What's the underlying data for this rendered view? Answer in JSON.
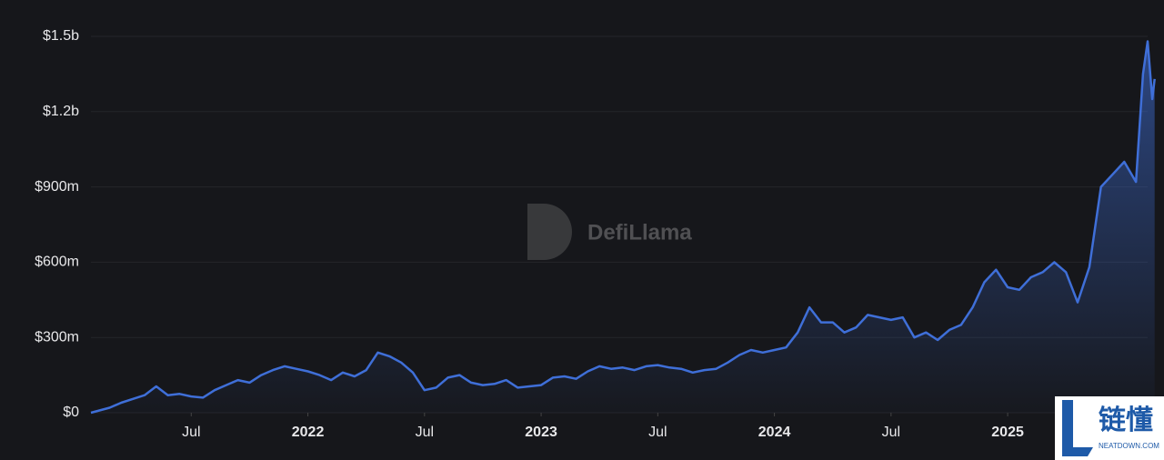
{
  "chart_data": {
    "type": "area",
    "watermark": "DefiLlama",
    "badge": {
      "title": "链懂",
      "subtitle": "NEATDOWN.COM"
    },
    "color": "#3f6fd8",
    "grid": true,
    "x": [
      2021.07,
      2021.15,
      2021.2,
      2021.25,
      2021.3,
      2021.35,
      2021.4,
      2021.45,
      2021.5,
      2021.55,
      2021.6,
      2021.65,
      2021.7,
      2021.75,
      2021.8,
      2021.85,
      2021.9,
      2021.95,
      2022.0,
      2022.05,
      2022.1,
      2022.15,
      2022.2,
      2022.25,
      2022.3,
      2022.35,
      2022.4,
      2022.45,
      2022.5,
      2022.55,
      2022.6,
      2022.65,
      2022.7,
      2022.75,
      2022.8,
      2022.85,
      2022.9,
      2022.95,
      2023.0,
      2023.05,
      2023.1,
      2023.15,
      2023.2,
      2023.25,
      2023.3,
      2023.35,
      2023.4,
      2023.45,
      2023.5,
      2023.55,
      2023.6,
      2023.65,
      2023.7,
      2023.75,
      2023.8,
      2023.85,
      2023.9,
      2023.95,
      2024.0,
      2024.05,
      2024.1,
      2024.15,
      2024.2,
      2024.25,
      2024.3,
      2024.35,
      2024.4,
      2024.45,
      2024.5,
      2024.55,
      2024.6,
      2024.65,
      2024.7,
      2024.75,
      2024.8,
      2024.85,
      2024.9,
      2024.95,
      2025.0,
      2025.05,
      2025.1,
      2025.15,
      2025.2,
      2025.25,
      2025.3,
      2025.35,
      2025.4,
      2025.45,
      2025.5,
      2025.55,
      2025.58,
      2025.6,
      2025.62,
      2025.63
    ],
    "values": [
      0,
      20000000,
      40000000,
      55000000,
      70000000,
      105000000,
      70000000,
      75000000,
      65000000,
      60000000,
      90000000,
      110000000,
      130000000,
      120000000,
      150000000,
      170000000,
      185000000,
      175000000,
      165000000,
      150000000,
      130000000,
      160000000,
      145000000,
      170000000,
      240000000,
      225000000,
      200000000,
      160000000,
      90000000,
      100000000,
      140000000,
      150000000,
      120000000,
      110000000,
      115000000,
      130000000,
      100000000,
      105000000,
      110000000,
      140000000,
      145000000,
      135000000,
      165000000,
      185000000,
      175000000,
      180000000,
      170000000,
      185000000,
      190000000,
      180000000,
      175000000,
      160000000,
      170000000,
      175000000,
      200000000,
      230000000,
      250000000,
      240000000,
      250000000,
      260000000,
      320000000,
      420000000,
      360000000,
      360000000,
      320000000,
      340000000,
      390000000,
      380000000,
      370000000,
      380000000,
      300000000,
      320000000,
      290000000,
      330000000,
      350000000,
      420000000,
      520000000,
      570000000,
      500000000,
      490000000,
      540000000,
      560000000,
      600000000,
      560000000,
      440000000,
      580000000,
      900000000,
      950000000,
      1000000000,
      920000000,
      1350000000,
      1480000000,
      1250000000,
      1330000000
    ],
    "xlim": [
      2021.07,
      2025.6
    ],
    "xticks": [
      {
        "value": 2021.5,
        "label": "Jul"
      },
      2022,
      {
        "value": 2022.5,
        "label": "Jul"
      },
      2023,
      {
        "value": 2023.5,
        "label": "Jul"
      },
      2024,
      {
        "value": 2024.5,
        "label": "Jul"
      },
      2025
    ],
    "ylim": [
      0,
      1500000000
    ],
    "yticks": [
      {
        "value": 0,
        "label": "$0"
      },
      {
        "value": 300000000,
        "label": "$300m"
      },
      {
        "value": 600000000,
        "label": "$600m"
      },
      {
        "value": 900000000,
        "label": "$900m"
      },
      {
        "value": 1200000000,
        "label": "$1.2b"
      },
      {
        "value": 1500000000,
        "label": "$1.5b"
      }
    ]
  }
}
